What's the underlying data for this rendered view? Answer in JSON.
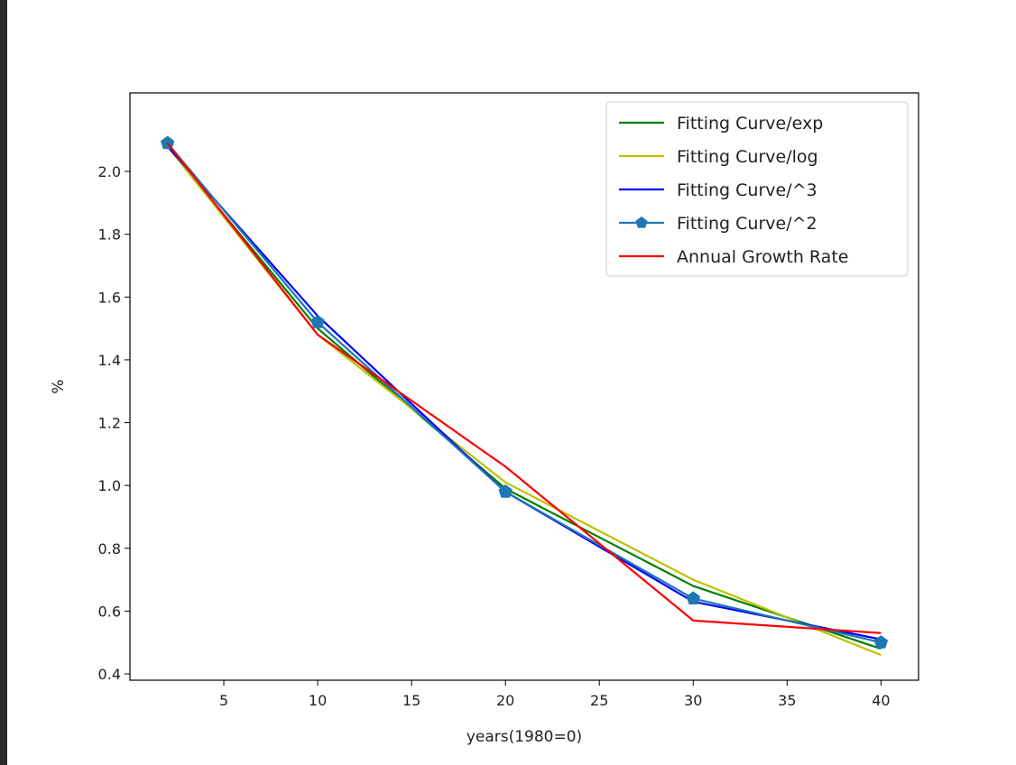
{
  "chart_data": {
    "type": "line",
    "title": "",
    "xlabel": "years(1980=0)",
    "ylabel": "%",
    "xlim": [
      0.0,
      42.0
    ],
    "ylim": [
      0.38,
      2.25
    ],
    "x": [
      2,
      10,
      20,
      30,
      40
    ],
    "xticks": [
      5,
      10,
      15,
      20,
      25,
      30,
      35,
      40
    ],
    "yticks": [
      0.4,
      0.6,
      0.8,
      1.0,
      1.2,
      1.4,
      1.6,
      1.8,
      2.0
    ],
    "xtick_labels": [
      "5",
      "10",
      "15",
      "20",
      "25",
      "30",
      "35",
      "40"
    ],
    "ytick_labels": [
      "0.4",
      "0.6",
      "0.8",
      "1.0",
      "1.2",
      "1.4",
      "1.6",
      "1.8",
      "2.0"
    ],
    "grid": false,
    "legend_position": "top-right",
    "series": [
      {
        "name": "Fitting Curve/exp",
        "color": "#008000",
        "marker": "none",
        "values": [
          2.08,
          1.5,
          0.99,
          0.68,
          0.48
        ]
      },
      {
        "name": "Fitting Curve/log",
        "color": "#bfbf00",
        "marker": "none",
        "values": [
          2.08,
          1.48,
          1.01,
          0.7,
          0.46
        ]
      },
      {
        "name": "Fitting Curve/^3",
        "color": "#0000ff",
        "marker": "none",
        "values": [
          2.08,
          1.54,
          0.98,
          0.63,
          0.51
        ]
      },
      {
        "name": "Fitting Curve/^2",
        "color": "#1f77b4",
        "marker": "pentagon",
        "values": [
          2.09,
          1.52,
          0.98,
          0.64,
          0.5
        ]
      },
      {
        "name": "Annual Growth Rate",
        "color": "#ff0000",
        "marker": "none",
        "values": [
          2.09,
          1.48,
          1.06,
          0.57,
          0.53
        ]
      }
    ]
  }
}
